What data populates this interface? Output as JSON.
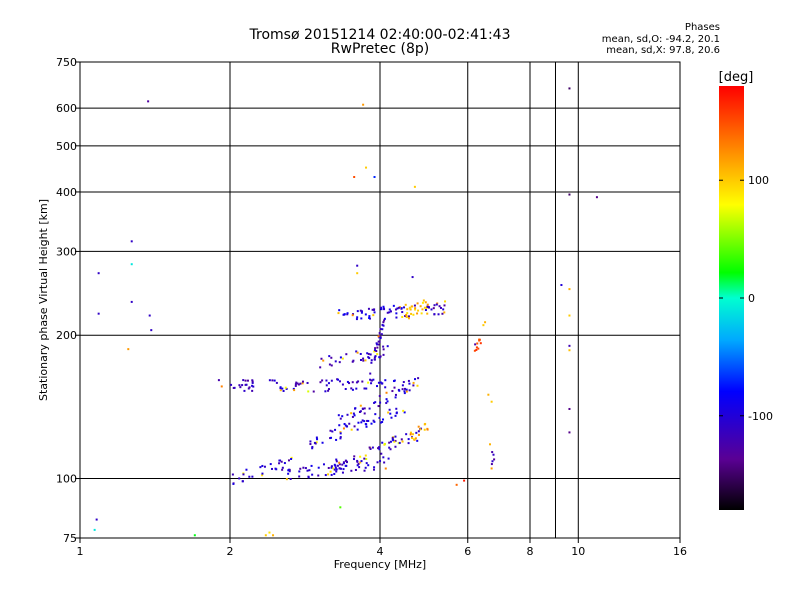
{
  "page": {
    "title_line1": "Tromsø 20151214 02:40:00-02:41:43",
    "title_line2": "RwPretec (8p)"
  },
  "phases_box": {
    "heading": "Phases",
    "line1": "mean, sd,O: -94.2, 20.1",
    "line2": "mean, sd,X:  97.8, 20.6"
  },
  "colorbar": {
    "title": "[deg]",
    "ticks": [
      "100",
      "0",
      "-100"
    ],
    "tick_values": [
      100,
      0,
      -100
    ],
    "range": [
      -180,
      180
    ]
  },
  "chart_data": {
    "type": "scatter",
    "xlabel": "Frequency [MHz]",
    "ylabel": "Stationary phase Virtual Height [km]",
    "x_scale": "log",
    "y_scale": "log",
    "xlim": [
      1,
      16
    ],
    "ylim": [
      75,
      750
    ],
    "x_ticks": [
      1,
      2,
      4,
      6,
      8,
      10,
      16
    ],
    "x_tick_labels": [
      "1",
      "2",
      "4",
      "6",
      "8",
      "10",
      "16"
    ],
    "x_minor_ticks": [
      9
    ],
    "y_ticks": [
      75,
      100,
      200,
      300,
      400,
      500,
      600,
      750
    ],
    "y_tick_labels": [
      "75",
      "100",
      "200",
      "300",
      "400",
      "500",
      "600",
      "750"
    ],
    "grid": true,
    "color_scale": "phase_deg",
    "bands": [
      {
        "f0": 1.9,
        "f1": 2.25,
        "h0": 157,
        "h1": 157,
        "n": 22,
        "phase": -115
      },
      {
        "f0": 2.4,
        "f1": 4.6,
        "h0": 157,
        "h1": 157,
        "n": 70,
        "phase": -110
      },
      {
        "f0": 2.0,
        "f1": 2.7,
        "h0": 100,
        "h1": 108,
        "n": 30,
        "phase": -110
      },
      {
        "f0": 2.6,
        "f1": 4.2,
        "h0": 102,
        "h1": 108,
        "n": 60,
        "phase": -108
      },
      {
        "f0": 3.2,
        "f1": 4.9,
        "h0": 106,
        "h1": 125,
        "n": 60,
        "phase": -112
      },
      {
        "f0": 2.9,
        "f1": 4.5,
        "h0": 118,
        "h1": 140,
        "n": 55,
        "phase": -105
      },
      {
        "f0": 3.3,
        "f1": 4.8,
        "h0": 132,
        "h1": 160,
        "n": 45,
        "phase": -110
      },
      {
        "f0": 3.0,
        "f1": 4.2,
        "h0": 175,
        "h1": 185,
        "n": 35,
        "phase": -112
      },
      {
        "f0": 3.8,
        "f1": 4.1,
        "h0": 165,
        "h1": 215,
        "n": 30,
        "phase": -115
      },
      {
        "f0": 3.3,
        "f1": 3.9,
        "h0": 222,
        "h1": 222,
        "n": 25,
        "phase": -100
      },
      {
        "f0": 3.9,
        "f1": 4.6,
        "h0": 222,
        "h1": 226,
        "n": 25,
        "phase": -105
      },
      {
        "f0": 4.5,
        "f1": 5.0,
        "h0": 222,
        "h1": 232,
        "n": 30,
        "phase": 105
      },
      {
        "f0": 4.9,
        "f1": 5.5,
        "h0": 224,
        "h1": 230,
        "n": 22,
        "phase": -120
      },
      {
        "f0": 4.6,
        "f1": 5.0,
        "h0": 122,
        "h1": 128,
        "n": 14,
        "phase": 115
      },
      {
        "f0": 6.2,
        "f1": 6.4,
        "h0": 188,
        "h1": 198,
        "n": 10,
        "phase": 150
      },
      {
        "f0": 6.7,
        "f1": 6.8,
        "h0": 110,
        "h1": 113,
        "n": 5,
        "phase": -120
      }
    ],
    "points": [
      {
        "x": 1.09,
        "y": 222,
        "phase": -110
      },
      {
        "x": 1.09,
        "y": 270,
        "phase": -110
      },
      {
        "x": 1.08,
        "y": 82,
        "phase": -110
      },
      {
        "x": 1.07,
        "y": 78,
        "phase": -10
      },
      {
        "x": 1.27,
        "y": 315,
        "phase": -110
      },
      {
        "x": 1.27,
        "y": 282,
        "phase": -10
      },
      {
        "x": 1.27,
        "y": 235,
        "phase": -110
      },
      {
        "x": 1.25,
        "y": 187,
        "phase": 120
      },
      {
        "x": 1.38,
        "y": 220,
        "phase": -110
      },
      {
        "x": 1.39,
        "y": 205,
        "phase": -110
      },
      {
        "x": 1.37,
        "y": 620,
        "phase": -130
      },
      {
        "x": 1.7,
        "y": 76,
        "phase": 20
      },
      {
        "x": 2.36,
        "y": 76,
        "phase": 100
      },
      {
        "x": 2.4,
        "y": 77,
        "phase": 90
      },
      {
        "x": 2.44,
        "y": 76,
        "phase": 110
      },
      {
        "x": 3.33,
        "y": 87,
        "phase": 40
      },
      {
        "x": 3.55,
        "y": 430,
        "phase": 150
      },
      {
        "x": 3.75,
        "y": 450,
        "phase": 100
      },
      {
        "x": 3.9,
        "y": 430,
        "phase": -70
      },
      {
        "x": 3.7,
        "y": 610,
        "phase": 120
      },
      {
        "x": 3.6,
        "y": 270,
        "phase": 100
      },
      {
        "x": 3.6,
        "y": 280,
        "phase": -110
      },
      {
        "x": 4.65,
        "y": 265,
        "phase": -110
      },
      {
        "x": 4.7,
        "y": 410,
        "phase": 100
      },
      {
        "x": 5.7,
        "y": 97,
        "phase": 140
      },
      {
        "x": 5.9,
        "y": 99,
        "phase": 170
      },
      {
        "x": 6.5,
        "y": 213,
        "phase": 110
      },
      {
        "x": 6.45,
        "y": 210,
        "phase": 100
      },
      {
        "x": 6.6,
        "y": 150,
        "phase": 110
      },
      {
        "x": 6.7,
        "y": 145,
        "phase": 100
      },
      {
        "x": 6.65,
        "y": 118,
        "phase": 110
      },
      {
        "x": 6.7,
        "y": 105,
        "phase": 120
      },
      {
        "x": 9.25,
        "y": 255,
        "phase": -100
      },
      {
        "x": 9.6,
        "y": 250,
        "phase": 110
      },
      {
        "x": 9.6,
        "y": 220,
        "phase": 100
      },
      {
        "x": 9.6,
        "y": 186,
        "phase": 105
      },
      {
        "x": 9.6,
        "y": 190,
        "phase": -120
      },
      {
        "x": 9.6,
        "y": 140,
        "phase": -140
      },
      {
        "x": 9.6,
        "y": 125,
        "phase": -140
      },
      {
        "x": 9.6,
        "y": 395,
        "phase": -150
      },
      {
        "x": 9.6,
        "y": 660,
        "phase": -150
      },
      {
        "x": 10.9,
        "y": 390,
        "phase": -140
      }
    ]
  }
}
